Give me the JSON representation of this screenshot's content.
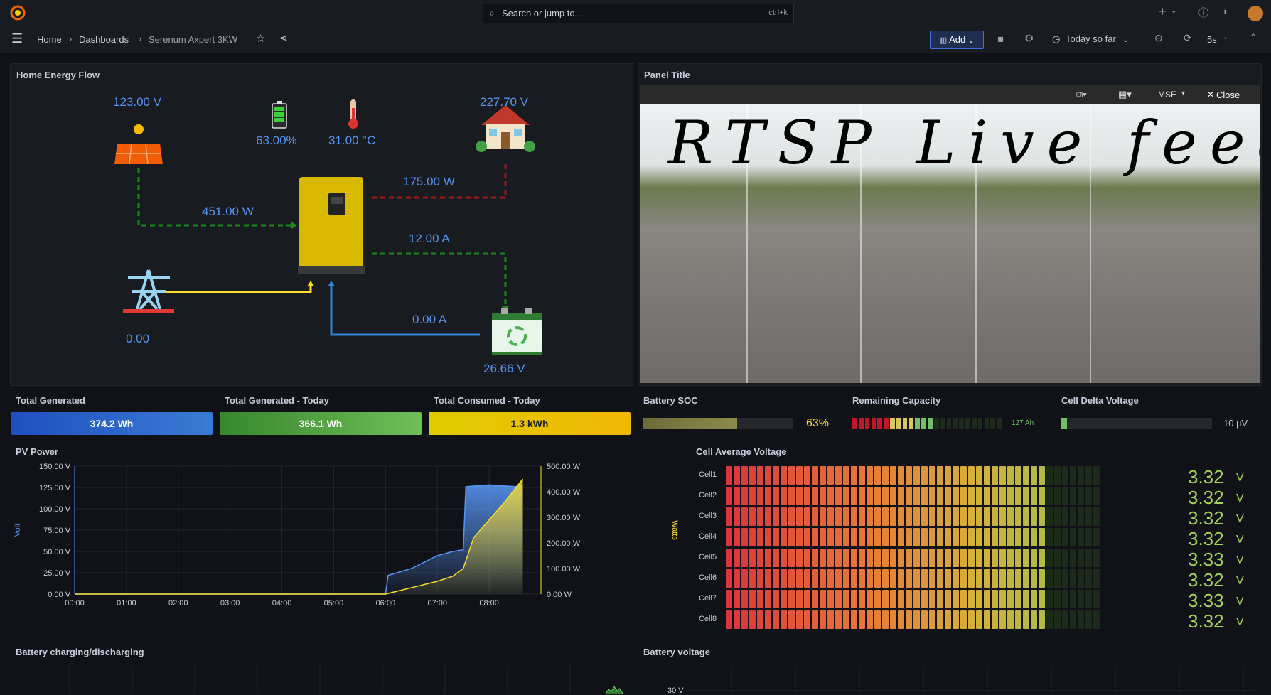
{
  "topbar": {
    "search_placeholder": "Search or jump to...",
    "shortcut": "ctrl+k",
    "plus_label": "+"
  },
  "breadcrumb": {
    "home": "Home",
    "dashboards": "Dashboards",
    "current": "Serenum Axpert 3KW"
  },
  "toolbar": {
    "add_label": "Add",
    "time_range": "Today so far",
    "refresh": "5s"
  },
  "energy_flow": {
    "title": "Home Energy Flow",
    "pv_voltage": "123.00 V",
    "battery_soc": "63.00%",
    "temperature": "31.00 °C",
    "house_voltage": "227.70 V",
    "pv_power": "451.00 W",
    "load_power": "175.00 W",
    "charge_current": "12.00 A",
    "grid_value": "0.00",
    "discharge_current": "0.00 A",
    "battery_voltage": "26.66 V"
  },
  "camera": {
    "title": "Panel Title",
    "mode": "MSE",
    "close": "Close",
    "overlay": "RTSP Live feed"
  },
  "stats": {
    "total_generated": {
      "title": "Total Generated",
      "value": "374.2 Wh"
    },
    "generated_today": {
      "title": "Total Generated - Today",
      "value": "366.1 Wh"
    },
    "consumed_today": {
      "title": "Total Consumed - Today",
      "value": "1.3 kWh"
    },
    "battery_soc": {
      "title": "Battery SOC",
      "value": "63%",
      "fraction": 0.63
    },
    "remaining_capacity": {
      "title": "Remaining Capacity",
      "value": "127 Ah",
      "lit_segments": 13,
      "segments": 24
    },
    "cell_delta": {
      "title": "Cell Delta Voltage",
      "value": "10 µV",
      "fraction": 0.04
    }
  },
  "pv_power": {
    "title": "PV Power",
    "chart_data": {
      "type": "area",
      "title": "PV Power",
      "x_ticks": [
        "00:00",
        "01:00",
        "02:00",
        "03:00",
        "04:00",
        "05:00",
        "06:00",
        "07:00",
        "08:00"
      ],
      "left_axis": {
        "label": "Volt",
        "ticks": [
          "150.00 V",
          "125.00 V",
          "100.00 V",
          "75.00 V",
          "50.00 V",
          "25.00 V",
          "0.00 V"
        ],
        "ylim": [
          0,
          150
        ]
      },
      "right_axis": {
        "label": "Watts",
        "ticks": [
          "500.00 W",
          "400.00 W",
          "300.00 W",
          "200.00 W",
          "100.00 W",
          "0.00 W"
        ],
        "ylim": [
          0,
          500
        ]
      },
      "series": [
        {
          "name": "Volt",
          "color": "#5794f2",
          "x_hours": [
            0,
            6.0,
            6.05,
            6.5,
            7.0,
            7.3,
            7.5,
            7.55,
            8.0,
            8.5,
            8.65
          ],
          "values": [
            0,
            0,
            22,
            30,
            45,
            50,
            52,
            126,
            128,
            126,
            128
          ]
        },
        {
          "name": "Watts",
          "color": "#fade2a",
          "x_hours": [
            0,
            6.0,
            6.2,
            6.6,
            7.0,
            7.3,
            7.5,
            7.7,
            8.0,
            8.3,
            8.65
          ],
          "values": [
            0,
            0,
            10,
            30,
            50,
            70,
            100,
            220,
            290,
            360,
            450
          ]
        }
      ]
    }
  },
  "cell_voltage": {
    "title": "Cell Average Voltage",
    "unit": "V",
    "lit_fraction": 0.85,
    "cells": [
      {
        "name": "Cell1",
        "value": "3.32"
      },
      {
        "name": "Cell2",
        "value": "3.32"
      },
      {
        "name": "Cell3",
        "value": "3.32"
      },
      {
        "name": "Cell4",
        "value": "3.32"
      },
      {
        "name": "Cell5",
        "value": "3.33"
      },
      {
        "name": "Cell6",
        "value": "3.32"
      },
      {
        "name": "Cell7",
        "value": "3.33"
      },
      {
        "name": "Cell8",
        "value": "3.32"
      }
    ]
  },
  "bottom": {
    "charging_title": "Battery charging/discharging",
    "voltage_title": "Battery voltage",
    "voltage_tick": "30 V"
  },
  "colors": {
    "accent": "#3d71d9",
    "grafana_orange": "#f46800",
    "series_blue": "#5794f2",
    "series_yellow": "#fade2a",
    "green": "#73bf69"
  }
}
